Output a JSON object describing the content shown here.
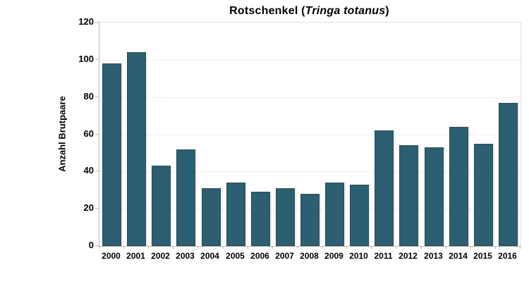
{
  "title": {
    "prefix": "Rotschenkel (",
    "species": "Tringa totanus",
    "suffix": ")"
  },
  "chart_data": {
    "type": "bar",
    "title": "Rotschenkel (Tringa totanus)",
    "categories": [
      "2000",
      "2001",
      "2002",
      "2003",
      "2004",
      "2005",
      "2006",
      "2007",
      "2008",
      "2009",
      "2010",
      "2011",
      "2012",
      "2013",
      "2014",
      "2015",
      "2016"
    ],
    "values": [
      98,
      104,
      43,
      52,
      31,
      34,
      29,
      31,
      28,
      34,
      33,
      62,
      54,
      53,
      64,
      55,
      77
    ],
    "xlabel": "",
    "ylabel": "Anzahl Brutpaare",
    "ylim": [
      0,
      120
    ],
    "yticks": [
      0,
      20,
      40,
      60,
      80,
      100,
      120
    ],
    "grid": "faint-horizontal",
    "legend": "none",
    "bar_color": "#2B5F71",
    "bar_border_color": "#2d4a4e",
    "axis_color": "#b9b9b9",
    "text_color": "#000000"
  }
}
